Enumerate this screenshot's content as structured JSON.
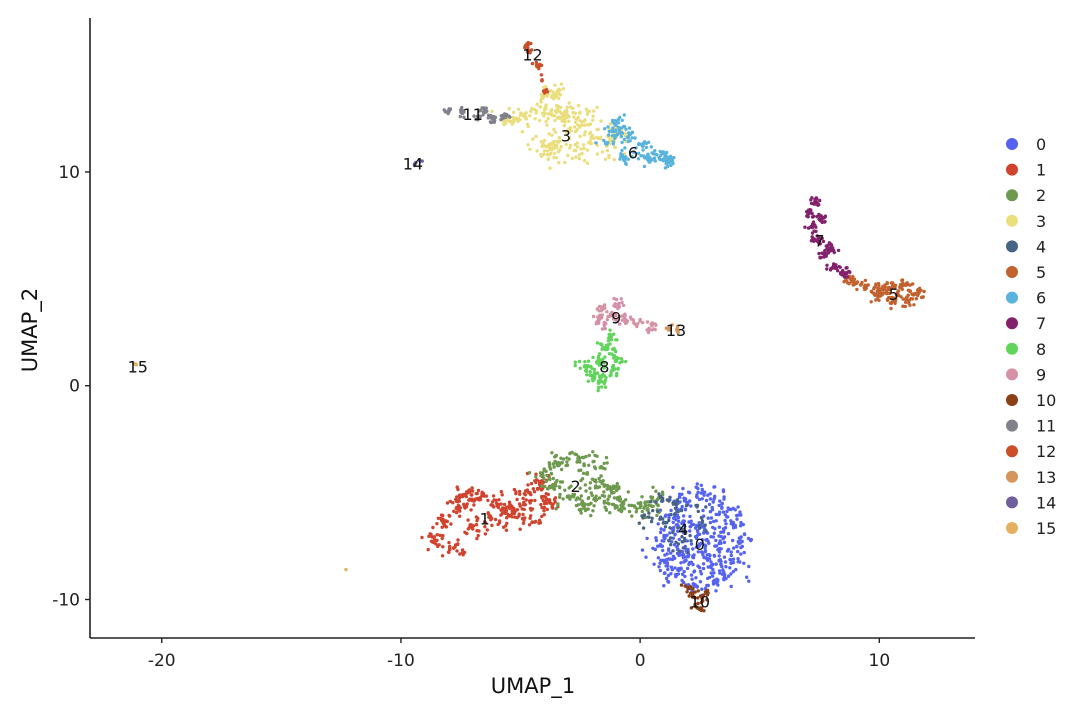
{
  "chart_data": {
    "type": "scatter",
    "title": "",
    "xlabel": "UMAP_1",
    "ylabel": "UMAP_2",
    "xlim": [
      -23,
      14
    ],
    "ylim": [
      -11.8,
      17.2
    ],
    "xticks": [
      -20,
      -10,
      0,
      10
    ],
    "yticks": [
      -10,
      0,
      10
    ],
    "grid": false,
    "legend_position": "right",
    "clusters": [
      {
        "name": "0",
        "color": "#5563F0",
        "label_xy": [
          2.5,
          -7.4
        ],
        "points": [
          [
            1.4,
            -6.2
          ],
          [
            1.9,
            -5.3
          ],
          [
            2.6,
            -5.0
          ],
          [
            3.3,
            -5.6
          ],
          [
            3.9,
            -6.4
          ],
          [
            4.1,
            -7.3
          ],
          [
            3.8,
            -8.3
          ],
          [
            3.1,
            -9.1
          ],
          [
            2.3,
            -9.3
          ],
          [
            1.6,
            -8.8
          ],
          [
            1.2,
            -8.1
          ],
          [
            1.0,
            -7.1
          ],
          [
            2.6,
            -7.2
          ],
          [
            2.1,
            -6.6
          ],
          [
            3.1,
            -6.9
          ],
          [
            2.9,
            -8.1
          ],
          [
            2.0,
            -8.0
          ]
        ],
        "spread": 0.55,
        "n": 460
      },
      {
        "name": "1",
        "color": "#D0432E",
        "label_xy": [
          -6.5,
          -6.2
        ],
        "points": [
          [
            -8.6,
            -7.2
          ],
          [
            -8.3,
            -6.3
          ],
          [
            -7.6,
            -5.6
          ],
          [
            -6.8,
            -5.3
          ],
          [
            -6.0,
            -5.5
          ],
          [
            -5.4,
            -5.7
          ],
          [
            -4.8,
            -5.1
          ],
          [
            -4.2,
            -4.6
          ],
          [
            -7.8,
            -7.6
          ],
          [
            -7.0,
            -6.7
          ],
          [
            -6.2,
            -6.2
          ],
          [
            -5.5,
            -6.1
          ],
          [
            -4.6,
            -6.2
          ],
          [
            -3.9,
            -5.5
          ],
          [
            -7.4,
            -5.1
          ]
        ],
        "spread": 0.4,
        "n": 330
      },
      {
        "name": "2",
        "color": "#6E9A4F",
        "label_xy": [
          -2.7,
          -4.7
        ],
        "points": [
          [
            -3.4,
            -3.6
          ],
          [
            -2.6,
            -3.4
          ],
          [
            -1.9,
            -3.8
          ],
          [
            -2.1,
            -4.8
          ],
          [
            -2.9,
            -5.2
          ],
          [
            -3.6,
            -4.7
          ],
          [
            -1.5,
            -5.4
          ],
          [
            -0.8,
            -5.6
          ],
          [
            0.0,
            -5.7
          ],
          [
            0.6,
            -5.4
          ],
          [
            -3.9,
            -4.2
          ],
          [
            -2.4,
            -5.6
          ],
          [
            -1.2,
            -4.9
          ]
        ],
        "spread": 0.45,
        "n": 280
      },
      {
        "name": "3",
        "color": "#EBDE7E",
        "label_xy": [
          -3.1,
          11.7
        ],
        "points": [
          [
            -5.5,
            12.4
          ],
          [
            -4.8,
            12.6
          ],
          [
            -4.0,
            12.9
          ],
          [
            -3.7,
            13.5
          ],
          [
            -3.2,
            12.6
          ],
          [
            -2.6,
            12.2
          ],
          [
            -2.0,
            11.7
          ],
          [
            -1.4,
            11.2
          ],
          [
            -3.4,
            11.4
          ],
          [
            -4.1,
            11.2
          ],
          [
            -2.7,
            11.0
          ],
          [
            -3.8,
            10.8
          ],
          [
            -2.2,
            12.7
          ],
          [
            -1.0,
            11.8
          ]
        ],
        "spread": 0.45,
        "n": 320
      },
      {
        "name": "4",
        "color": "#476485",
        "label_xy": [
          1.8,
          -6.7
        ],
        "points": [
          [
            0.9,
            -5.4
          ],
          [
            1.5,
            -5.5
          ],
          [
            1.2,
            -6.3
          ],
          [
            1.9,
            -6.9
          ],
          [
            1.6,
            -7.4
          ],
          [
            2.4,
            -5.6
          ],
          [
            0.5,
            -6.2
          ],
          [
            2.6,
            -6.4
          ]
        ],
        "spread": 0.35,
        "n": 70
      },
      {
        "name": "5",
        "color": "#C1622F",
        "label_xy": [
          10.6,
          4.3
        ],
        "points": [
          [
            9.4,
            4.7
          ],
          [
            10.0,
            4.4
          ],
          [
            10.6,
            4.1
          ],
          [
            11.2,
            4.0
          ],
          [
            11.6,
            4.3
          ],
          [
            11.1,
            4.7
          ],
          [
            10.4,
            4.6
          ],
          [
            9.8,
            4.3
          ],
          [
            8.8,
            5.0
          ]
        ],
        "spread": 0.3,
        "n": 170
      },
      {
        "name": "6",
        "color": "#5AB3DD",
        "label_xy": [
          -0.3,
          10.9
        ],
        "points": [
          [
            -1.1,
            11.9
          ],
          [
            -0.5,
            11.6
          ],
          [
            0.1,
            11.2
          ],
          [
            0.7,
            10.8
          ],
          [
            1.1,
            10.5
          ],
          [
            -0.6,
            10.7
          ],
          [
            -1.4,
            11.3
          ],
          [
            0.3,
            10.6
          ],
          [
            -0.9,
            12.3
          ]
        ],
        "spread": 0.3,
        "n": 150
      },
      {
        "name": "7",
        "color": "#83226C",
        "label_xy": [
          7.5,
          6.8
        ],
        "points": [
          [
            7.3,
            8.6
          ],
          [
            7.1,
            8.1
          ],
          [
            7.2,
            7.4
          ],
          [
            7.4,
            6.8
          ],
          [
            7.7,
            6.1
          ],
          [
            8.1,
            5.6
          ],
          [
            8.5,
            5.3
          ],
          [
            7.6,
            7.8
          ],
          [
            7.9,
            6.4
          ]
        ],
        "spread": 0.2,
        "n": 150
      },
      {
        "name": "8",
        "color": "#61D45C",
        "label_xy": [
          -1.5,
          0.9
        ],
        "points": [
          [
            -1.4,
            1.8
          ],
          [
            -1.7,
            1.1
          ],
          [
            -1.2,
            0.7
          ],
          [
            -1.9,
            0.5
          ],
          [
            -1.0,
            1.2
          ],
          [
            -1.5,
            0.1
          ],
          [
            -2.2,
            0.9
          ],
          [
            -1.2,
            2.3
          ]
        ],
        "spread": 0.28,
        "n": 130
      },
      {
        "name": "9",
        "color": "#D592A6",
        "label_xy": [
          -1.0,
          3.2
        ],
        "points": [
          [
            -1.6,
            3.6
          ],
          [
            -1.2,
            3.3
          ],
          [
            -0.6,
            3.1
          ],
          [
            -0.1,
            2.9
          ],
          [
            0.5,
            2.8
          ],
          [
            -1.5,
            2.9
          ],
          [
            -0.9,
            3.8
          ],
          [
            -1.7,
            3.1
          ]
        ],
        "spread": 0.22,
        "n": 90
      },
      {
        "name": "10",
        "color": "#8B3F18",
        "label_xy": [
          2.5,
          -10.1
        ],
        "points": [
          [
            2.2,
            -9.8
          ],
          [
            2.6,
            -10.0
          ],
          [
            2.4,
            -10.4
          ],
          [
            2.8,
            -9.6
          ],
          [
            2.0,
            -9.5
          ]
        ],
        "spread": 0.2,
        "n": 40
      },
      {
        "name": "11",
        "color": "#80818A",
        "label_xy": [
          -7.0,
          12.7
        ],
        "points": [
          [
            -8.0,
            12.9
          ],
          [
            -7.4,
            12.8
          ],
          [
            -6.8,
            12.6
          ],
          [
            -6.2,
            12.5
          ],
          [
            -5.7,
            12.6
          ],
          [
            -6.5,
            12.9
          ]
        ],
        "spread": 0.15,
        "n": 70
      },
      {
        "name": "12",
        "color": "#CB4E28",
        "label_xy": [
          -4.5,
          15.5
        ],
        "points": [
          [
            -4.8,
            15.9
          ],
          [
            -4.6,
            15.6
          ],
          [
            -4.3,
            15.0
          ],
          [
            -4.1,
            14.3
          ],
          [
            -4.0,
            13.8
          ],
          [
            -4.7,
            16.0
          ]
        ],
        "spread": 0.12,
        "n": 40
      },
      {
        "name": "13",
        "color": "#D6955C",
        "label_xy": [
          1.5,
          2.6
        ],
        "points": [
          [
            1.2,
            2.7
          ],
          [
            1.6,
            2.6
          ]
        ],
        "spread": 0.12,
        "n": 8
      },
      {
        "name": "14",
        "color": "#6F5F9F",
        "label_xy": [
          -9.5,
          10.4
        ],
        "points": [
          [
            -9.4,
            10.4
          ],
          [
            -9.2,
            10.5
          ]
        ],
        "spread": 0.08,
        "n": 5
      },
      {
        "name": "15",
        "color": "#E4B25E",
        "label_xy": [
          -21.0,
          0.9
        ],
        "points": [
          [
            -21.1,
            1.0
          ],
          [
            -12.3,
            -8.6
          ]
        ],
        "spread": 0.06,
        "n": 4
      }
    ]
  }
}
